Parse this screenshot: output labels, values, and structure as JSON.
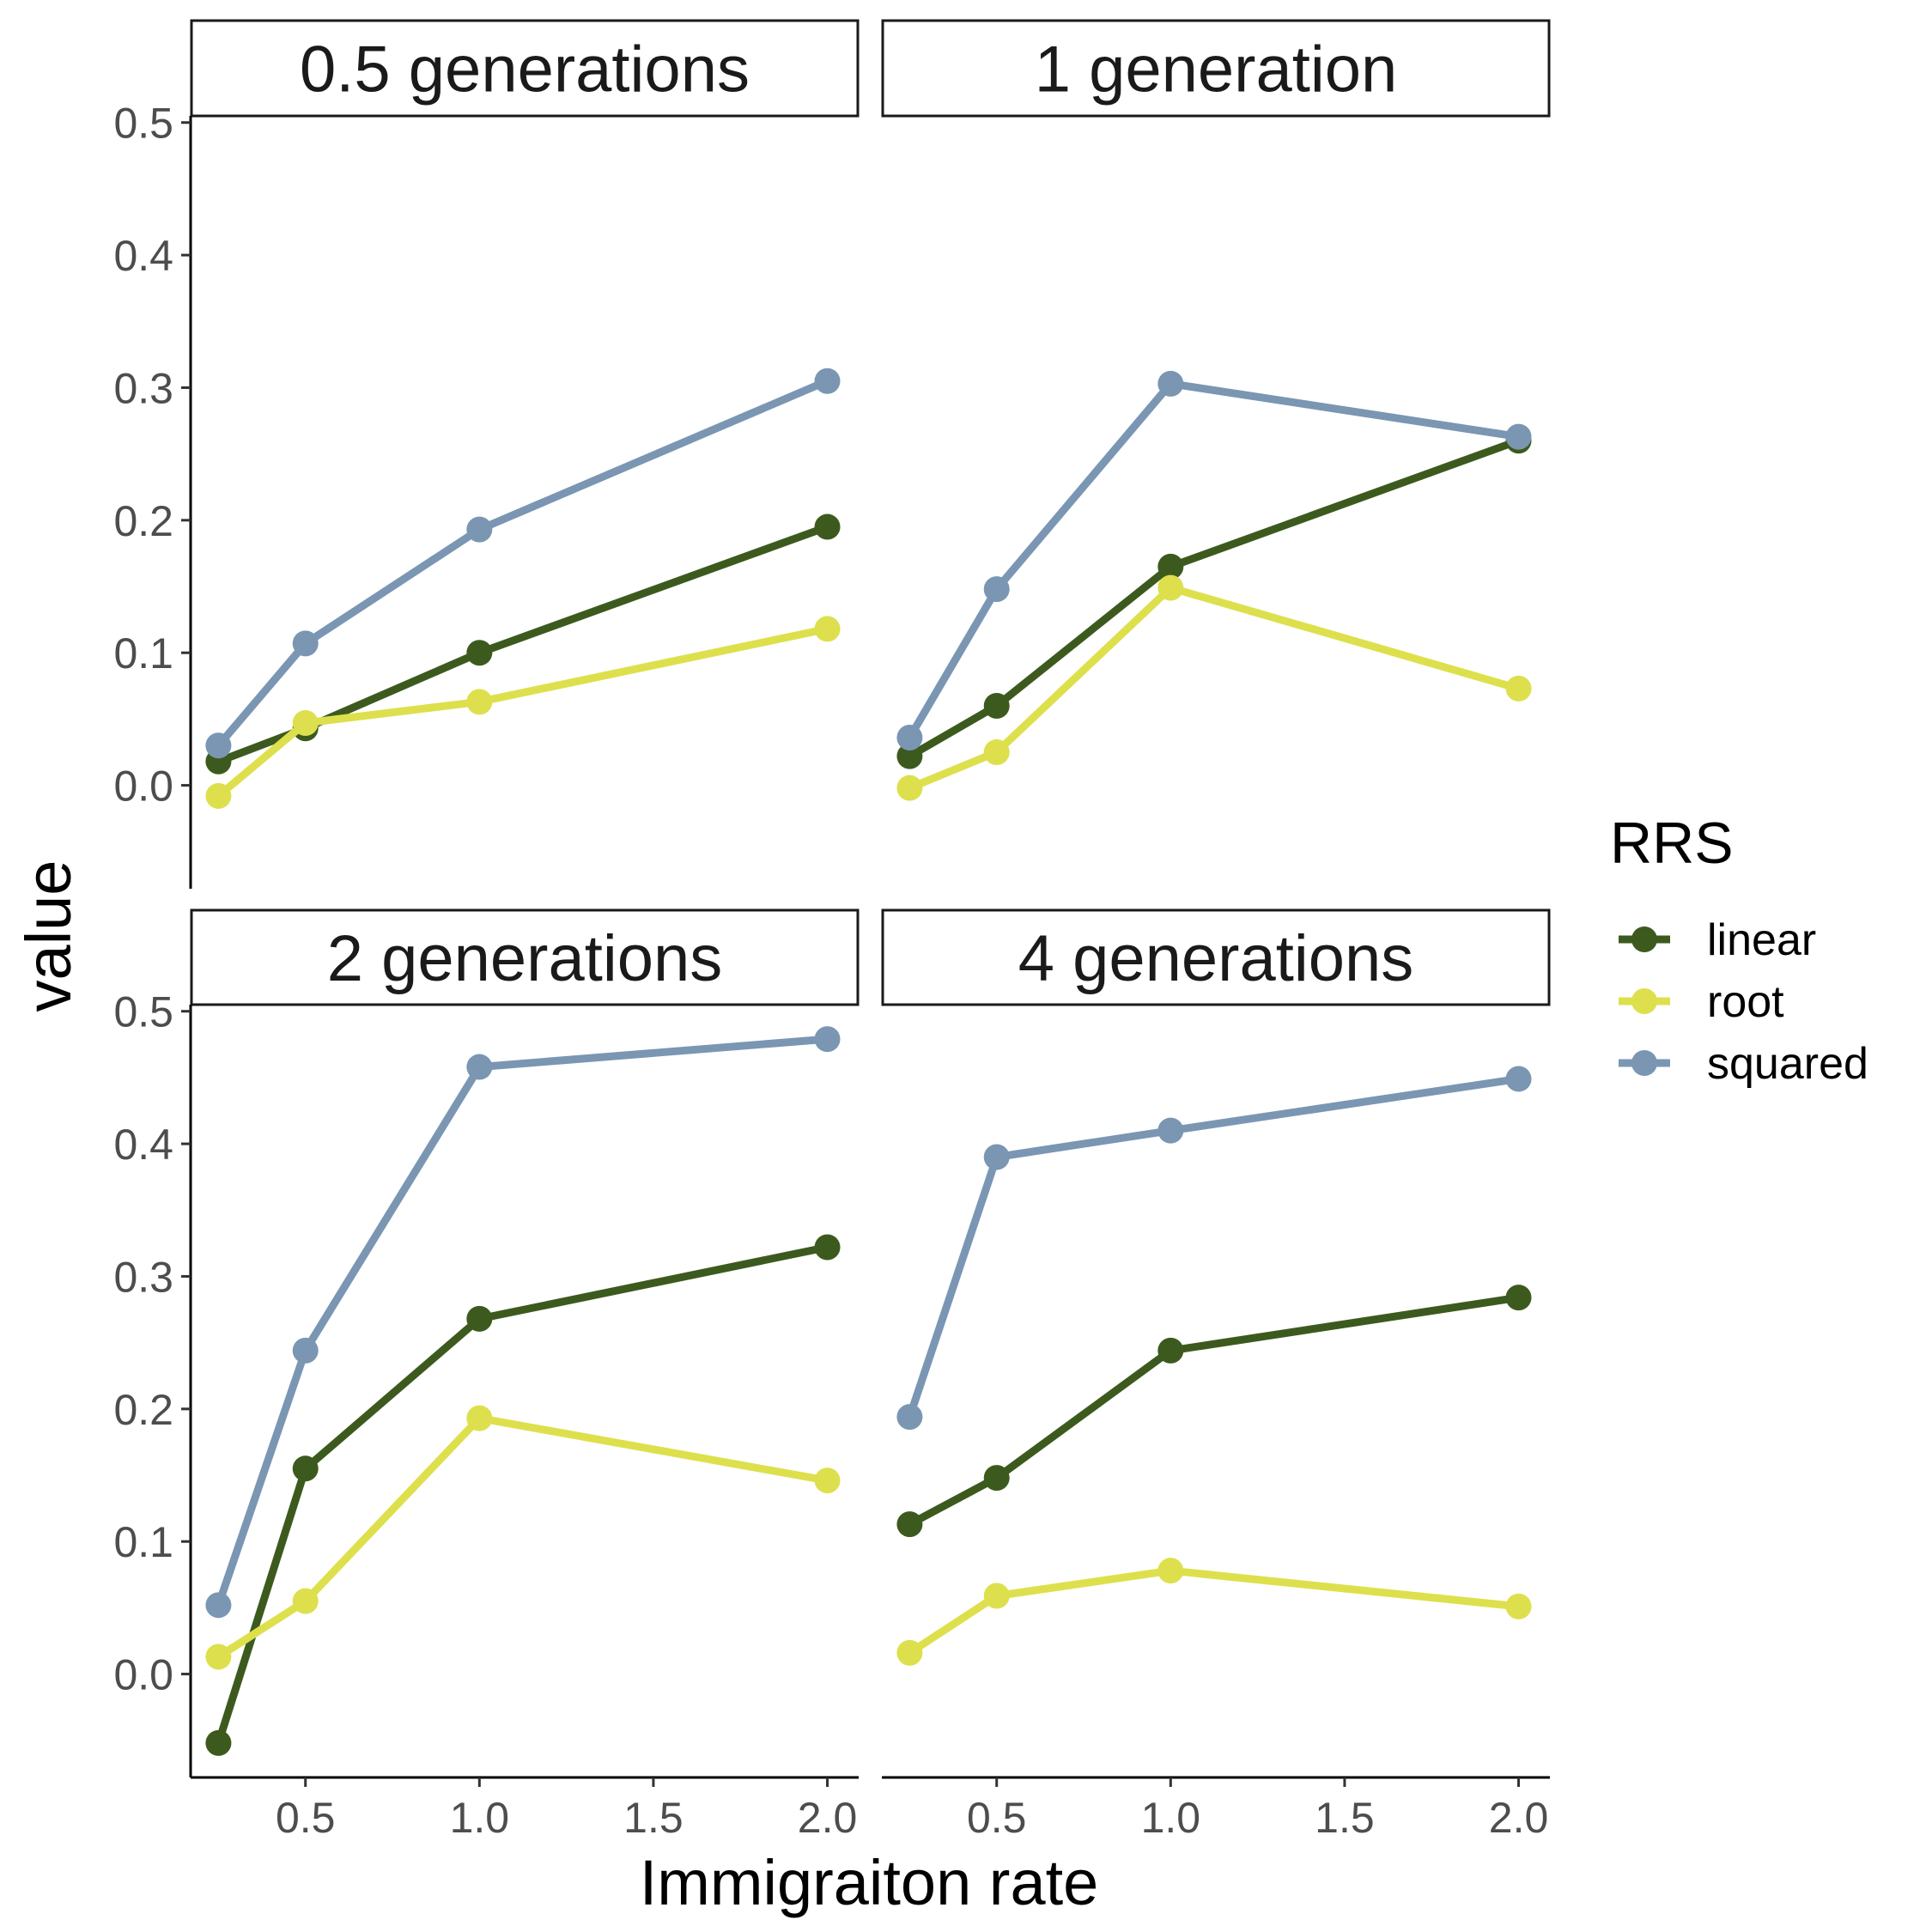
{
  "chart_data": {
    "type": "line",
    "xlabel": "Immigraiton rate",
    "ylabel": "value",
    "x": [
      0.25,
      0.5,
      1.0,
      2.0
    ],
    "xlim": [
      0.17,
      2.09
    ],
    "ylim": [
      -0.078,
      0.505
    ],
    "xticks": [
      0.5,
      1.0,
      1.5,
      2.0
    ],
    "xtick_labels": [
      "0.5",
      "1.0",
      "1.5",
      "2.0"
    ],
    "yticks": [
      0.0,
      0.1,
      0.2,
      0.3,
      0.4,
      0.5
    ],
    "ytick_labels": [
      "0.0",
      "0.1",
      "0.2",
      "0.3",
      "0.4",
      "0.5"
    ],
    "grid": false,
    "legend": {
      "title": "RRS",
      "position": "right",
      "entries": [
        "linear",
        "root",
        "squared"
      ]
    },
    "colors": {
      "linear": "#3d5a1e",
      "root": "#dde04c",
      "squared": "#7a96b3"
    },
    "panels": [
      {
        "label": "0.5 generations",
        "series": [
          {
            "name": "linear",
            "values": [
              0.018,
              0.043,
              0.1,
              0.195
            ]
          },
          {
            "name": "root",
            "values": [
              -0.008,
              0.047,
              0.063,
              0.118
            ]
          },
          {
            "name": "squared",
            "values": [
              0.03,
              0.107,
              0.193,
              0.305
            ]
          }
        ]
      },
      {
        "label": "1 generation",
        "series": [
          {
            "name": "linear",
            "values": [
              0.022,
              0.06,
              0.165,
              0.26
            ]
          },
          {
            "name": "root",
            "values": [
              -0.002,
              0.025,
              0.149,
              0.073
            ]
          },
          {
            "name": "squared",
            "values": [
              0.036,
              0.148,
              0.303,
              0.263
            ]
          }
        ]
      },
      {
        "label": "2 generations",
        "series": [
          {
            "name": "linear",
            "values": [
              -0.052,
              0.155,
              0.268,
              0.322
            ]
          },
          {
            "name": "root",
            "values": [
              0.013,
              0.055,
              0.193,
              0.146
            ]
          },
          {
            "name": "squared",
            "values": [
              0.052,
              0.244,
              0.458,
              0.479
            ]
          }
        ]
      },
      {
        "label": "4 generations",
        "series": [
          {
            "name": "linear",
            "values": [
              0.113,
              0.148,
              0.244,
              0.284
            ]
          },
          {
            "name": "root",
            "values": [
              0.016,
              0.059,
              0.078,
              0.051
            ]
          },
          {
            "name": "squared",
            "values": [
              0.194,
              0.39,
              0.41,
              0.449
            ]
          }
        ]
      }
    ]
  }
}
